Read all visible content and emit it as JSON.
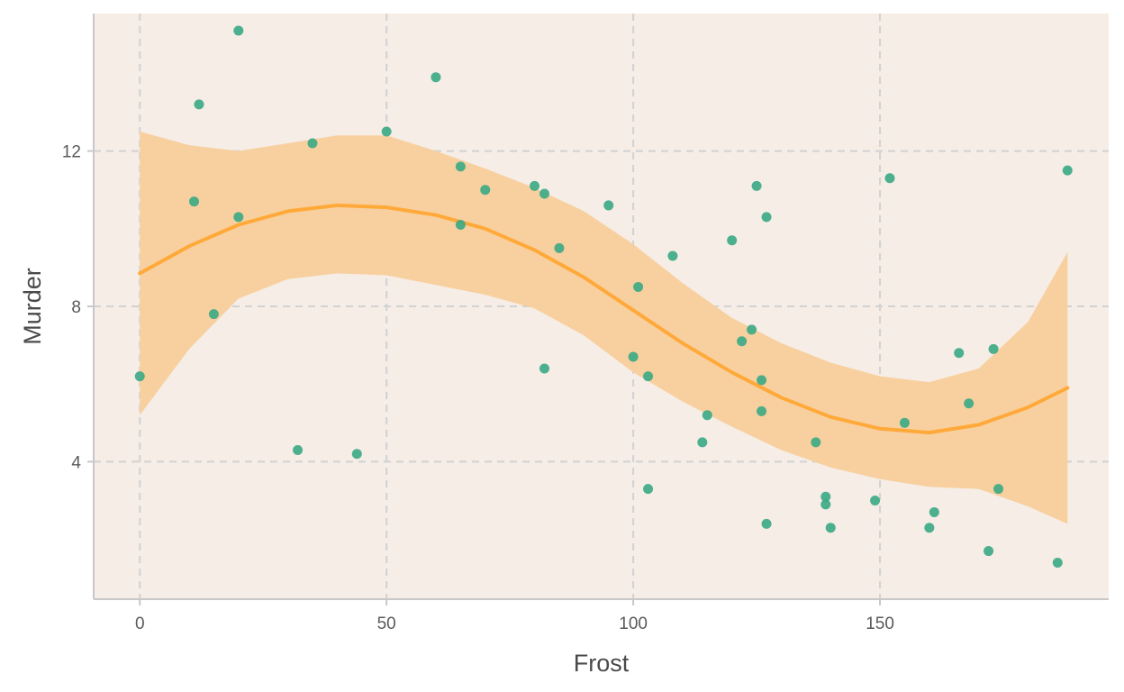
{
  "chart_data": {
    "type": "scatter",
    "title": "",
    "xlabel": "Frost",
    "ylabel": "Murder",
    "xlim": [
      -9.35,
      196.35
    ],
    "ylim": [
      0.46,
      15.54
    ],
    "x_ticks": [
      0,
      50,
      100,
      150
    ],
    "y_ticks": [
      4,
      8,
      12
    ],
    "grid": true,
    "grid_style": "dashed",
    "legend": "none",
    "colors": {
      "panel_background": "#f5ede6",
      "point": "#3aa884",
      "smooth_line": "#ffa93a",
      "ribbon": "#f8cf9b",
      "grid": "#d2d2d2",
      "axis": "#c8c8c8"
    },
    "points": {
      "x": [
        0,
        11,
        12,
        15,
        20,
        20,
        32,
        35,
        44,
        50,
        60,
        65,
        65,
        70,
        80,
        82,
        82,
        85,
        95,
        100,
        101,
        103,
        103,
        108,
        114,
        115,
        120,
        122,
        124,
        125,
        126,
        126,
        127,
        127,
        137,
        139,
        139,
        140,
        149,
        152,
        155,
        160,
        161,
        166,
        168,
        172,
        173,
        174,
        186,
        188
      ],
      "y": [
        6.2,
        10.7,
        13.2,
        7.8,
        15.1,
        10.3,
        4.3,
        12.2,
        4.2,
        12.5,
        13.9,
        11.6,
        10.1,
        11.0,
        11.1,
        10.9,
        6.4,
        9.5,
        10.6,
        6.7,
        8.5,
        6.2,
        3.3,
        9.3,
        4.5,
        5.2,
        9.7,
        7.1,
        7.4,
        11.1,
        6.1,
        5.3,
        10.3,
        2.4,
        4.5,
        3.1,
        2.9,
        2.3,
        3.0,
        11.3,
        5.0,
        2.3,
        2.7,
        6.8,
        5.5,
        1.7,
        6.9,
        3.3,
        1.4,
        11.5
      ]
    },
    "smooth": {
      "x": [
        0,
        10,
        20,
        30,
        40,
        50,
        60,
        70,
        80,
        90,
        100,
        110,
        120,
        130,
        140,
        150,
        160,
        170,
        180,
        188
      ],
      "fit": [
        8.85,
        9.55,
        10.1,
        10.45,
        10.6,
        10.55,
        10.35,
        10.0,
        9.45,
        8.75,
        7.9,
        7.05,
        6.3,
        5.65,
        5.15,
        4.85,
        4.75,
        4.95,
        5.4,
        5.9
      ],
      "upper": [
        12.5,
        12.15,
        12.0,
        12.2,
        12.4,
        12.4,
        12.0,
        11.55,
        11.05,
        10.45,
        9.6,
        8.6,
        7.7,
        7.05,
        6.55,
        6.2,
        6.05,
        6.4,
        7.6,
        9.4
      ],
      "lower": [
        5.2,
        6.9,
        8.2,
        8.7,
        8.85,
        8.8,
        8.55,
        8.3,
        7.95,
        7.25,
        6.3,
        5.55,
        4.9,
        4.3,
        3.85,
        3.55,
        3.35,
        3.3,
        2.85,
        2.4
      ]
    }
  }
}
